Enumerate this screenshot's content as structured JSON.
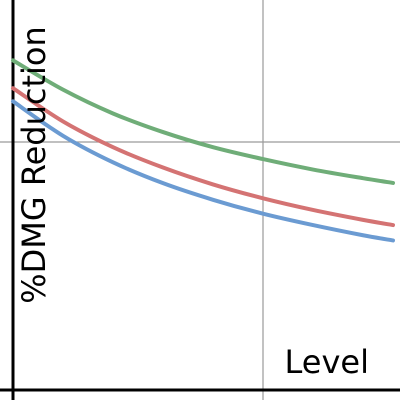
{
  "chart_data": {
    "type": "line",
    "xlabel": "Level",
    "ylabel": "%DMG Reduction",
    "xlim": [
      0,
      1.52
    ],
    "ylim": [
      0,
      1.3
    ],
    "gridlines": {
      "x": [
        0,
        1
      ],
      "y": [
        1
      ]
    },
    "grid": "partial",
    "legend": "none",
    "x": [
      0,
      0.2,
      0.4,
      0.6,
      0.8,
      1.0,
      1.2,
      1.4,
      1.52
    ],
    "series": [
      {
        "color": "#6b9bd2",
        "values": [
          1.164,
          1.025,
          0.918,
          0.834,
          0.767,
          0.711,
          0.665,
          0.624,
          0.603
        ]
      },
      {
        "color": "#d47373",
        "values": [
          1.217,
          1.083,
          0.979,
          0.897,
          0.829,
          0.773,
          0.726,
          0.686,
          0.665
        ]
      },
      {
        "color": "#6fad78",
        "values": [
          1.329,
          1.211,
          1.115,
          1.04,
          0.979,
          0.931,
          0.889,
          0.854,
          0.835
        ]
      }
    ]
  }
}
